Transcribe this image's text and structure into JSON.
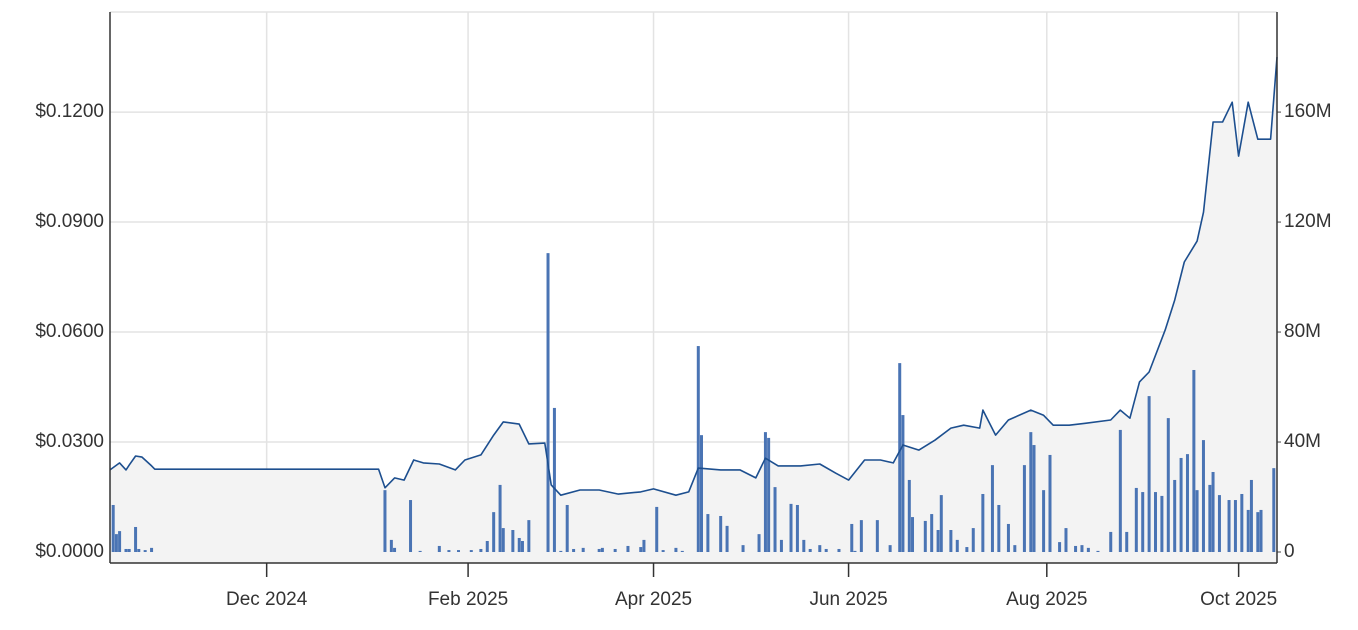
{
  "chart_data": {
    "type": "line",
    "grid": true,
    "xlim": [
      0,
      365
    ],
    "xticks": [
      {
        "value": 49,
        "label": "Dec 2024"
      },
      {
        "value": 112,
        "label": "Feb 2025"
      },
      {
        "value": 170,
        "label": "Apr 2025"
      },
      {
        "value": 231,
        "label": "Jun 2025"
      },
      {
        "value": 293,
        "label": "Aug 2025"
      },
      {
        "value": 353,
        "label": "Oct 2025"
      }
    ],
    "ylim": [
      -0.003,
      0.1473
    ],
    "yticks": [
      {
        "value": 0,
        "label": "$0.0000"
      },
      {
        "value": 0.03,
        "label": "$0.0300"
      },
      {
        "value": 0.06,
        "label": "$0.0600"
      },
      {
        "value": 0.09,
        "label": "$0.0900"
      },
      {
        "value": 0.12,
        "label": "$0.1200"
      }
    ],
    "y2lim": [
      -4000000,
      196400000
    ],
    "y2ticks": [
      0,
      {
        "value": 40000000,
        "label": "40M"
      },
      {
        "value": 80000000,
        "label": "80M"
      },
      {
        "value": 120000000,
        "label": "120M"
      },
      {
        "value": 160000000,
        "label": "160M"
      }
    ],
    "series": [
      {
        "type": "line",
        "color": "#1d4f8f",
        "fill": "#f3f3f3",
        "x": [
          0,
          3,
          5,
          6,
          8,
          10,
          13,
          14,
          84,
          86,
          89,
          92,
          95,
          98,
          103,
          108,
          111,
          116,
          120,
          123,
          128,
          131,
          136,
          138,
          141,
          147,
          153,
          159,
          166,
          170,
          177,
          181,
          184,
          191,
          197,
          202,
          205,
          209,
          216,
          222,
          227,
          231,
          236,
          241,
          245,
          248,
          253,
          258,
          263,
          267,
          272,
          273,
          277,
          281,
          288,
          292,
          295,
          300,
          305,
          313,
          316,
          319,
          322,
          325,
          330,
          333,
          336,
          340,
          342,
          345,
          348,
          351,
          353,
          356,
          359,
          363,
          365
        ],
        "values": [
          0.0224,
          0.0243,
          0.0224,
          0.0237,
          0.0262,
          0.0259,
          0.0235,
          0.0226,
          0.0226,
          0.0175,
          0.0202,
          0.0196,
          0.0251,
          0.0243,
          0.024,
          0.0224,
          0.0251,
          0.0265,
          0.0319,
          0.0355,
          0.0349,
          0.0295,
          0.0297,
          0.0183,
          0.0155,
          0.0169,
          0.0169,
          0.0158,
          0.0164,
          0.0172,
          0.0155,
          0.0164,
          0.0229,
          0.0224,
          0.0224,
          0.0202,
          0.0256,
          0.0235,
          0.0235,
          0.024,
          0.0215,
          0.0196,
          0.0251,
          0.0251,
          0.0243,
          0.0292,
          0.0278,
          0.0305,
          0.0338,
          0.0346,
          0.0338,
          0.0387,
          0.0319,
          0.036,
          0.0387,
          0.0373,
          0.0346,
          0.0346,
          0.0351,
          0.036,
          0.0387,
          0.0365,
          0.0464,
          0.0491,
          0.0605,
          0.0687,
          0.0791,
          0.0848,
          0.0927,
          0.1173,
          0.1173,
          0.1227,
          0.108,
          0.1227,
          0.1126,
          0.1126,
          0.135
        ]
      },
      {
        "type": "bar",
        "axis": "y2",
        "color": "#4a74b4",
        "x": [
          1,
          2,
          3,
          5,
          6,
          8,
          9,
          11,
          13,
          86,
          88,
          89,
          94,
          97,
          103,
          106,
          109,
          113,
          116,
          118,
          120,
          122,
          123,
          126,
          128,
          129,
          131,
          137,
          139,
          141,
          143,
          145,
          148,
          153,
          154,
          158,
          162,
          166,
          167,
          171,
          173,
          177,
          179,
          184,
          185,
          187,
          191,
          193,
          198,
          203,
          205,
          206,
          208,
          210,
          213,
          215,
          217,
          219,
          222,
          224,
          228,
          232,
          233,
          235,
          240,
          244,
          247,
          248,
          250,
          251,
          255,
          257,
          259,
          260,
          263,
          265,
          268,
          270,
          273,
          276,
          278,
          281,
          283,
          286,
          288,
          289,
          292,
          294,
          297,
          299,
          302,
          304,
          306,
          309,
          313,
          316,
          318,
          321,
          323,
          325,
          327,
          329,
          331,
          333,
          335,
          337,
          339,
          340,
          342,
          344,
          345,
          347,
          350,
          352,
          354,
          356,
          357,
          359,
          360,
          364
        ],
        "values": [
          17100000,
          6500000,
          7600000,
          1100000,
          1100000,
          9100000,
          1100000,
          700000,
          1500000,
          22500000,
          4400000,
          1500000,
          18900000,
          400000,
          2200000,
          700000,
          700000,
          700000,
          1100000,
          4000000,
          14500000,
          24400000,
          8700000,
          8000000,
          5100000,
          4000000,
          11600000,
          108700000,
          52400000,
          400000,
          17100000,
          1100000,
          1500000,
          1100000,
          1500000,
          1100000,
          2200000,
          1800000,
          4400000,
          16400000,
          700000,
          1500000,
          400000,
          74900000,
          42500000,
          13800000,
          13100000,
          9500000,
          2500000,
          6500000,
          43600000,
          41500000,
          23600000,
          4400000,
          17500000,
          17100000,
          4400000,
          1100000,
          2500000,
          1100000,
          1100000,
          10200000,
          400000,
          11600000,
          11600000,
          2500000,
          68700000,
          49800000,
          26200000,
          12700000,
          11300000,
          13800000,
          8000000,
          20700000,
          8000000,
          4400000,
          1800000,
          8700000,
          21100000,
          31600000,
          17100000,
          10200000,
          2500000,
          31600000,
          43600000,
          38900000,
          22500000,
          35300000,
          3600000,
          8700000,
          2200000,
          2500000,
          1500000,
          400000,
          7300000,
          44400000,
          7300000,
          23300000,
          21800000,
          56700000,
          21800000,
          20400000,
          48700000,
          26200000,
          34200000,
          35600000,
          66200000,
          22500000,
          40700000,
          24400000,
          29100000,
          20700000,
          18900000,
          18900000,
          21100000,
          15300000,
          26200000,
          14500000,
          15300000,
          30500000
        ]
      }
    ]
  }
}
